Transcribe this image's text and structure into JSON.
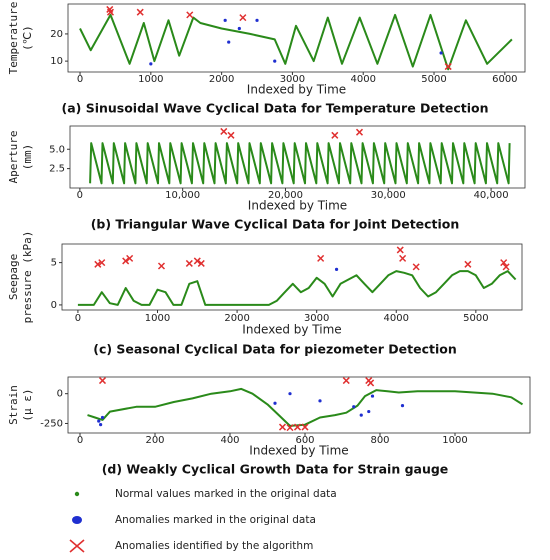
{
  "chart_data": [
    {
      "type": "line",
      "caption": "(a)  Sinusoidal Wave Cyclical Data for Temperature Detection",
      "xlabel": "Indexed by Time",
      "ylabel": [
        "Temperature",
        "(℃)"
      ],
      "xlim": [
        -170,
        6285
      ],
      "ylim": [
        6,
        31
      ],
      "xticks": [
        0,
        1000,
        2000,
        3000,
        4000,
        5000,
        6000
      ],
      "yticks": [
        10,
        20
      ],
      "series": [
        {
          "color": "#2a8a1a",
          "marker": "line",
          "x": [
            0,
            150,
            430,
            700,
            900,
            1050,
            1250,
            1400,
            1600,
            1700,
            2000,
            2400,
            2750,
            2900,
            3050,
            3300,
            3500,
            3700,
            3950,
            4200,
            4450,
            4700,
            4950,
            5200,
            5450,
            5750,
            6100
          ],
          "values": [
            22,
            14,
            27,
            9,
            24,
            10,
            25,
            12,
            26,
            24,
            22,
            20,
            18,
            9,
            23,
            10,
            26,
            9,
            26,
            9,
            27,
            8,
            27,
            7,
            25,
            9,
            18
          ]
        },
        {
          "color": "#1f2fd0",
          "marker": "dot",
          "x": [
            1000,
            2050,
            2100,
            2250,
            2500,
            2750,
            5100
          ],
          "values": [
            9,
            25,
            17,
            22,
            25,
            10,
            13
          ]
        },
        {
          "color": "#e03030",
          "marker": "x",
          "x": [
            420,
            430,
            850,
            1550,
            2300,
            5200
          ],
          "values": [
            29,
            28,
            28,
            27,
            26,
            8
          ]
        }
      ]
    },
    {
      "type": "line",
      "caption": "(b)  Triangular Wave Cyclical Data for Joint Detection",
      "xlabel": "Indexed by Time",
      "ylabel": [
        "Aperture",
        "(mm)"
      ],
      "xlim": [
        -960,
        43300
      ],
      "ylim": [
        0,
        8
      ],
      "xticks": [
        0,
        {
          "value": 10000,
          "label": "10,000"
        },
        {
          "value": 20000,
          "label": "20,000"
        },
        {
          "value": 30000,
          "label": "30,000"
        },
        {
          "value": 40000,
          "label": "40,000"
        }
      ],
      "yticks": [
        2.5,
        {
          "value": 5,
          "label": "5.0"
        }
      ],
      "series": [
        {
          "color": "#2a8a1a",
          "marker": "line",
          "x": [
            1000,
            1100,
            2100,
            2200,
            3200,
            3300,
            4300,
            4400,
            5400,
            5500,
            6500,
            6600,
            7600,
            7700,
            8700,
            8800,
            9800,
            9900,
            10900,
            11000,
            12000,
            12100,
            13100,
            13200,
            14200,
            14300,
            15300,
            15400,
            16400,
            16500,
            17500,
            17600,
            18600,
            18700,
            19700,
            19800,
            20800,
            20900,
            21900,
            22000,
            23000,
            23100,
            24100,
            24200,
            25200,
            25300,
            26300,
            26400,
            27400,
            27500,
            28500,
            28600,
            29600,
            29700,
            30700,
            30800,
            31800,
            31900,
            32900,
            33000,
            34000,
            34100,
            35100,
            35200,
            36200,
            36300,
            37300,
            37400,
            38400,
            38500,
            39500,
            39600,
            40600,
            40700,
            41700,
            41800
          ],
          "values": [
            0.6,
            5.8,
            0.6,
            5.8,
            0.6,
            5.8,
            0.6,
            5.8,
            0.6,
            5.8,
            0.6,
            5.8,
            0.6,
            5.8,
            0.6,
            5.8,
            0.6,
            5.8,
            0.6,
            5.8,
            0.6,
            5.8,
            0.6,
            5.8,
            0.6,
            5.8,
            0.6,
            5.8,
            0.6,
            5.8,
            0.6,
            5.8,
            0.6,
            5.8,
            0.6,
            5.8,
            0.6,
            5.8,
            0.6,
            5.8,
            0.6,
            5.8,
            0.6,
            5.8,
            0.6,
            5.8,
            0.6,
            5.8,
            0.6,
            5.8,
            0.6,
            5.8,
            0.6,
            5.8,
            0.6,
            5.8,
            0.6,
            5.8,
            0.6,
            5.8,
            0.6,
            5.8,
            0.6,
            5.8,
            0.6,
            5.8,
            0.6,
            5.8,
            0.6,
            5.8,
            0.6,
            5.8,
            0.6,
            5.8,
            0.6,
            5.8
          ]
        },
        {
          "color": "#e03030",
          "marker": "x",
          "x": [
            14000,
            14700,
            24800,
            27200
          ],
          "values": [
            7.3,
            6.8,
            6.8,
            7.2
          ]
        }
      ]
    },
    {
      "type": "line",
      "caption": "(c)  Seasonal Cyclical Data for piezometer Detection",
      "xlabel": "Indexed by Time",
      "ylabel": [
        "Seepage",
        "pressure (kPa)"
      ],
      "xlim": [
        -200,
        5580
      ],
      "ylim": [
        -0.6,
        7.2
      ],
      "xticks": [
        0,
        1000,
        2000,
        3000,
        4000,
        5000
      ],
      "yticks": [
        0,
        5
      ],
      "series": [
        {
          "color": "#2a8a1a",
          "marker": "line",
          "x": [
            0,
            100,
            200,
            300,
            400,
            500,
            600,
            700,
            800,
            900,
            1000,
            1100,
            1200,
            1300,
            1400,
            1500,
            1600,
            1700,
            2400,
            2500,
            2600,
            2700,
            2800,
            2900,
            3000,
            3100,
            3200,
            3300,
            3400,
            3500,
            3600,
            3700,
            3800,
            3900,
            4000,
            4100,
            4200,
            4300,
            4400,
            4500,
            4600,
            4700,
            4800,
            4900,
            5000,
            5100,
            5200,
            5300,
            5400,
            5500
          ],
          "values": [
            0,
            0,
            0,
            1.5,
            0.2,
            0,
            2,
            0.5,
            0,
            0,
            1.8,
            1.5,
            0,
            0,
            2.5,
            2.8,
            0,
            0,
            0,
            0.5,
            1.5,
            2.5,
            1.5,
            2,
            3.2,
            2.5,
            1,
            2.5,
            3,
            3.5,
            2.5,
            1.5,
            2.5,
            3.5,
            4,
            3.8,
            3.5,
            2,
            1,
            1.5,
            2.5,
            3.5,
            4,
            4,
            3.5,
            2,
            2.5,
            3.5,
            4,
            3
          ]
        },
        {
          "color": "#1f2fd0",
          "marker": "dot",
          "x": [
            3250
          ],
          "values": [
            4.2
          ]
        },
        {
          "color": "#e03030",
          "marker": "x",
          "x": [
            250,
            300,
            600,
            650,
            1050,
            1400,
            1500,
            1550,
            3050,
            4050,
            4080,
            4250,
            4900,
            5350,
            5380
          ],
          "values": [
            4.8,
            5,
            5.2,
            5.5,
            4.6,
            4.9,
            5.2,
            4.9,
            5.5,
            6.5,
            5.5,
            4.5,
            4.8,
            5,
            4.5
          ]
        }
      ]
    },
    {
      "type": "line",
      "caption": "(d)  Weakly Cyclical Growth Data for Strain gauge",
      "xlabel": "Indexed by Time",
      "ylabel": [
        "Strain",
        "(μ ε)"
      ],
      "xlim": [
        -32,
        1200
      ],
      "ylim": [
        -330,
        140
      ],
      "xticks": [
        0,
        200,
        400,
        600,
        800,
        1000
      ],
      "yticks": [
        -250,
        0
      ],
      "series": [
        {
          "color": "#2a8a1a",
          "marker": "line",
          "x": [
            20,
            40,
            60,
            80,
            150,
            200,
            250,
            300,
            350,
            400,
            430,
            460,
            500,
            530,
            560,
            600,
            640,
            680,
            710,
            740,
            760,
            790,
            820,
            850,
            900,
            1000,
            1100,
            1150,
            1180
          ],
          "values": [
            -180,
            -200,
            -220,
            -150,
            -110,
            -110,
            -70,
            -40,
            0,
            20,
            40,
            0,
            -90,
            -180,
            -270,
            -260,
            -200,
            -180,
            -160,
            -100,
            -20,
            30,
            20,
            10,
            20,
            20,
            0,
            -30,
            -90
          ]
        },
        {
          "color": "#1f2fd0",
          "marker": "dot",
          "x": [
            50,
            55,
            60,
            520,
            560,
            640,
            730,
            750,
            770,
            780,
            860
          ],
          "values": [
            -230,
            -260,
            -200,
            -80,
            0,
            -60,
            -110,
            -180,
            -150,
            -20,
            -100
          ]
        },
        {
          "color": "#e03030",
          "marker": "x",
          "x": [
            60,
            710,
            770,
            775,
            540,
            560,
            580,
            600
          ],
          "values": [
            110,
            110,
            110,
            90,
            -280,
            -285,
            -280,
            -280
          ]
        }
      ]
    }
  ],
  "legend": [
    {
      "label": "Normal values marked in the original data",
      "color": "#2a8a1a",
      "marker": "dot"
    },
    {
      "label": "Anomalies marked in the original data",
      "color": "#1f2fd0",
      "marker": "blob"
    },
    {
      "label": "Anomalies identified by the algorithm",
      "color": "#e03030",
      "marker": "x"
    }
  ]
}
